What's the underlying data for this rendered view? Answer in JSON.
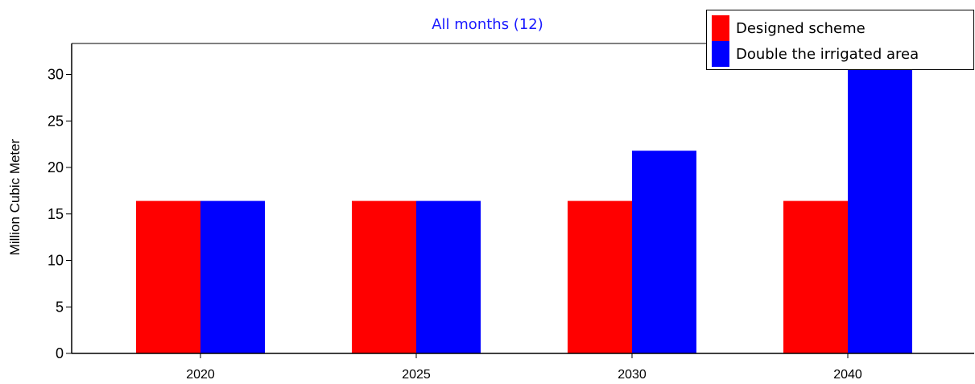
{
  "chart_data": {
    "type": "bar",
    "title": "",
    "subtitle": "All months (12)",
    "xlabel": "",
    "ylabel": "Million Cubic Meter",
    "categories": [
      "2020",
      "2025",
      "2030",
      "2040"
    ],
    "series": [
      {
        "name": "Designed scheme",
        "color": "#ff0000",
        "values": [
          16.4,
          16.4,
          16.4,
          16.4
        ]
      },
      {
        "name": "Double the irrigated area",
        "color": "#0000ff",
        "values": [
          16.4,
          16.4,
          21.8,
          32.8
        ]
      }
    ],
    "ylim": [
      0,
      33
    ],
    "yticks": [
      0,
      5,
      10,
      15,
      20,
      25,
      30
    ],
    "grid": false,
    "legend_position": "top-right"
  }
}
